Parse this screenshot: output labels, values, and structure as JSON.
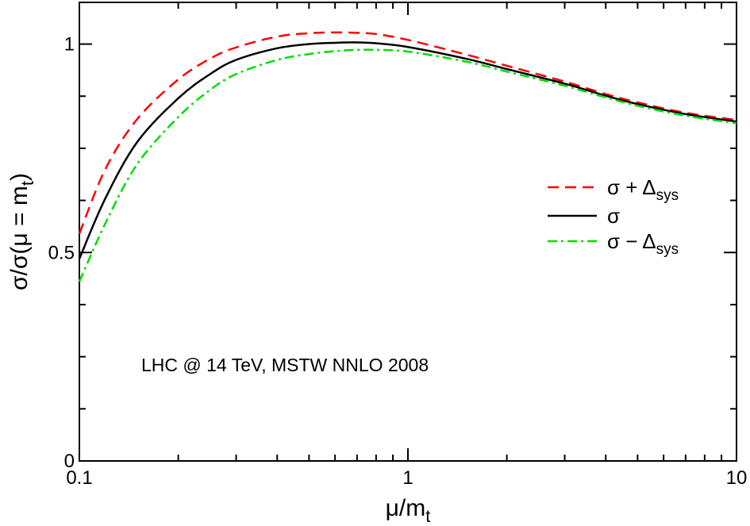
{
  "chart_data": {
    "type": "line",
    "xscale": "log",
    "xlim": [
      0.1,
      10
    ],
    "ylim": [
      0,
      1.1
    ],
    "xticks": [
      {
        "value": 0.1,
        "label": "0.1"
      },
      {
        "value": 1,
        "label": "1"
      },
      {
        "value": 10,
        "label": "10"
      }
    ],
    "yticks": [
      {
        "value": 0,
        "label": "0"
      },
      {
        "value": 0.5,
        "label": "0.5"
      },
      {
        "value": 1,
        "label": "1"
      }
    ],
    "xlabel": {
      "main": "μ/m",
      "sub": "t"
    },
    "ylabel": {
      "main": "σ/σ(μ = m",
      "sub": "t",
      "tail": ")"
    },
    "annotation": "LHC @ 14 TeV, MSTW NNLO 2008",
    "legend_position": "right",
    "x": [
      0.1,
      0.12,
      0.15,
      0.2,
      0.25,
      0.3,
      0.4,
      0.5,
      0.6,
      0.7,
      0.8,
      1.0,
      1.5,
      2.0,
      3.0,
      4.0,
      5.0,
      7.0,
      10.0
    ],
    "series": [
      {
        "name_main": "σ + Δ",
        "name_sub": "sys",
        "color": "#ff0000",
        "dash": "14,8",
        "values": [
          0.545,
          0.7,
          0.82,
          0.915,
          0.965,
          0.992,
          1.018,
          1.026,
          1.028,
          1.027,
          1.024,
          1.01,
          0.975,
          0.948,
          0.91,
          0.88,
          0.86,
          0.835,
          0.818
        ]
      },
      {
        "name_main": "σ",
        "name_sub": "",
        "color": "#000000",
        "dash": "",
        "values": [
          0.485,
          0.63,
          0.765,
          0.87,
          0.928,
          0.962,
          0.99,
          1.0,
          1.003,
          1.004,
          1.002,
          0.993,
          0.965,
          0.94,
          0.905,
          0.876,
          0.856,
          0.832,
          0.814
        ]
      },
      {
        "name_main": "σ − Δ",
        "name_sub": "sys",
        "color": "#00dd00",
        "dash": "12,5,3,5",
        "values": [
          0.43,
          0.57,
          0.712,
          0.825,
          0.89,
          0.928,
          0.962,
          0.976,
          0.983,
          0.986,
          0.986,
          0.982,
          0.958,
          0.934,
          0.9,
          0.872,
          0.852,
          0.828,
          0.81
        ]
      }
    ]
  }
}
